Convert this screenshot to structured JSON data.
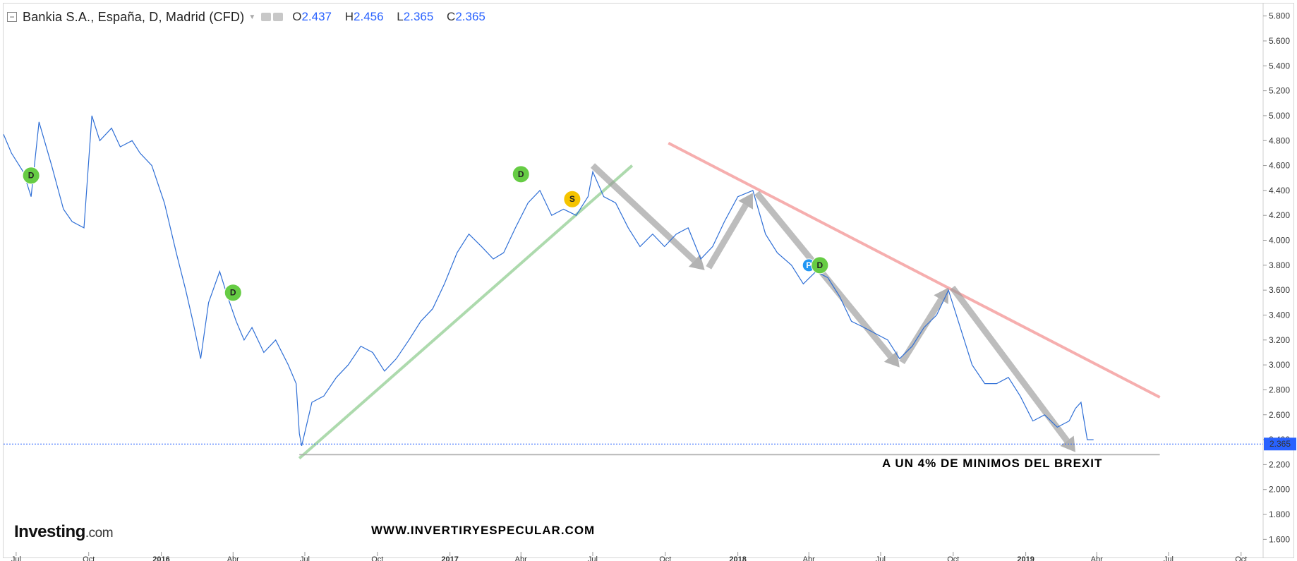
{
  "header": {
    "title": "Bankia S.A., España, D, Madrid (CFD)",
    "open_key": "O",
    "open": "2.437",
    "high_key": "H",
    "high": "2.456",
    "low_key": "L",
    "low": "2.365",
    "close_key": "C",
    "close": "2.365"
  },
  "watermark": {
    "brand": "Investing",
    "suffix": ".com"
  },
  "site_label": "WWW.INVERTIRYESPECULAR.COM",
  "annotation": "A UN 4% DE MINIMOS DEL BREXIT",
  "colors": {
    "price_line": "#2f6fd6",
    "support_green": "#9fd39f",
    "resistance_red": "#f5a0a0",
    "arrow_gray": "#9a9a9a",
    "last_price_badge": "#2962ff",
    "dividend_marker": "#66cc44",
    "split_marker": "#f5c400",
    "event_marker": "#2196f3"
  },
  "chart_data": {
    "type": "line",
    "title": "Bankia S.A., España, D, Madrid (CFD)",
    "ylim": [
      1.5,
      5.9
    ],
    "xlim": [
      "2015-06-15",
      "2019-10-20"
    ],
    "yticks": [
      "1.600",
      "1.800",
      "2.000",
      "2.200",
      "2.400",
      "2.600",
      "2.800",
      "3.000",
      "3.200",
      "3.400",
      "3.600",
      "3.800",
      "4.000",
      "4.200",
      "4.400",
      "4.600",
      "4.800",
      "5.000",
      "5.200",
      "5.400",
      "5.600",
      "5.800"
    ],
    "xticks": [
      {
        "label": "Jul",
        "date": "2015-07-01",
        "bold": false
      },
      {
        "label": "Oct",
        "date": "2015-10-01",
        "bold": false
      },
      {
        "label": "2016",
        "date": "2016-01-01",
        "bold": true
      },
      {
        "label": "Abr",
        "date": "2016-04-01",
        "bold": false
      },
      {
        "label": "Jul",
        "date": "2016-07-01",
        "bold": false
      },
      {
        "label": "Oct",
        "date": "2016-10-01",
        "bold": false
      },
      {
        "label": "2017",
        "date": "2017-01-01",
        "bold": true
      },
      {
        "label": "Abr",
        "date": "2017-04-01",
        "bold": false
      },
      {
        "label": "Jul",
        "date": "2017-07-01",
        "bold": false
      },
      {
        "label": "Oct",
        "date": "2017-10-01",
        "bold": false
      },
      {
        "label": "2018",
        "date": "2018-01-01",
        "bold": true
      },
      {
        "label": "Abr",
        "date": "2018-04-01",
        "bold": false
      },
      {
        "label": "Jul",
        "date": "2018-07-01",
        "bold": false
      },
      {
        "label": "Oct",
        "date": "2018-10-01",
        "bold": false
      },
      {
        "label": "2019",
        "date": "2019-01-01",
        "bold": true
      },
      {
        "label": "Abr",
        "date": "2019-04-01",
        "bold": false
      },
      {
        "label": "Jul",
        "date": "2019-07-01",
        "bold": false
      },
      {
        "label": "Oct",
        "date": "2019-10-01",
        "bold": false
      }
    ],
    "series": [
      {
        "x": [
          "2015-06-15",
          "2015-06-25",
          "2015-07-10",
          "2015-07-20",
          "2015-07-30",
          "2015-08-15",
          "2015-08-30",
          "2015-09-10",
          "2015-09-25",
          "2015-10-05",
          "2015-10-15",
          "2015-10-30",
          "2015-11-10",
          "2015-11-25",
          "2015-12-05",
          "2015-12-20",
          "2016-01-05",
          "2016-01-20",
          "2016-02-01",
          "2016-02-10",
          "2016-02-20",
          "2016-03-01",
          "2016-03-15",
          "2016-03-25",
          "2016-04-05",
          "2016-04-15",
          "2016-04-25",
          "2016-05-10",
          "2016-05-25",
          "2016-06-10",
          "2016-06-20",
          "2016-06-24",
          "2016-06-27",
          "2016-07-10",
          "2016-07-25",
          "2016-08-10",
          "2016-08-25",
          "2016-09-10",
          "2016-09-25",
          "2016-10-10",
          "2016-10-25",
          "2016-11-10",
          "2016-11-25",
          "2016-12-10",
          "2016-12-25",
          "2017-01-10",
          "2017-01-25",
          "2017-02-10",
          "2017-02-25",
          "2017-03-10",
          "2017-03-25",
          "2017-04-10",
          "2017-04-25",
          "2017-05-10",
          "2017-05-25",
          "2017-06-10",
          "2017-06-25",
          "2017-07-01",
          "2017-07-15",
          "2017-07-30",
          "2017-08-15",
          "2017-08-30",
          "2017-09-15",
          "2017-09-30",
          "2017-10-15",
          "2017-10-30",
          "2017-11-15",
          "2017-11-30",
          "2017-12-15",
          "2018-01-01",
          "2018-01-20",
          "2018-02-05",
          "2018-02-20",
          "2018-03-10",
          "2018-03-25",
          "2018-04-10",
          "2018-04-25",
          "2018-05-10",
          "2018-05-25",
          "2018-06-10",
          "2018-06-25",
          "2018-07-10",
          "2018-07-25",
          "2018-08-10",
          "2018-08-25",
          "2018-09-10",
          "2018-09-25",
          "2018-10-10",
          "2018-10-25",
          "2018-11-10",
          "2018-11-25",
          "2018-12-10",
          "2018-12-25",
          "2019-01-10",
          "2019-01-25",
          "2019-02-10",
          "2019-02-25",
          "2019-03-05",
          "2019-03-12",
          "2019-03-20",
          "2019-03-28"
        ],
        "values": [
          4.85,
          4.7,
          4.55,
          4.35,
          4.95,
          4.6,
          4.25,
          4.15,
          4.1,
          5.0,
          4.8,
          4.9,
          4.75,
          4.8,
          4.7,
          4.6,
          4.3,
          3.9,
          3.6,
          3.35,
          3.05,
          3.5,
          3.75,
          3.55,
          3.35,
          3.2,
          3.3,
          3.1,
          3.2,
          3.0,
          2.85,
          2.45,
          2.35,
          2.7,
          2.75,
          2.9,
          3.0,
          3.15,
          3.1,
          2.95,
          3.05,
          3.2,
          3.35,
          3.45,
          3.65,
          3.9,
          4.05,
          3.95,
          3.85,
          3.9,
          4.1,
          4.3,
          4.4,
          4.2,
          4.25,
          4.2,
          4.35,
          4.55,
          4.35,
          4.3,
          4.1,
          3.95,
          4.05,
          3.95,
          4.05,
          4.1,
          3.85,
          3.95,
          4.15,
          4.35,
          4.4,
          4.05,
          3.9,
          3.8,
          3.65,
          3.75,
          3.7,
          3.55,
          3.35,
          3.3,
          3.25,
          3.2,
          3.05,
          3.15,
          3.3,
          3.4,
          3.6,
          3.3,
          3.0,
          2.85,
          2.85,
          2.9,
          2.75,
          2.55,
          2.6,
          2.5,
          2.55,
          2.65,
          2.7,
          2.4,
          2.4
        ]
      }
    ],
    "last_price": "2.365",
    "markers": [
      {
        "label": "D",
        "date": "2015-07-20",
        "value": 4.52,
        "kind": "dividend"
      },
      {
        "label": "D",
        "date": "2016-04-01",
        "value": 3.58,
        "kind": "dividend"
      },
      {
        "label": "D",
        "date": "2017-04-01",
        "value": 4.53,
        "kind": "dividend"
      },
      {
        "label": "S",
        "date": "2017-06-05",
        "value": 4.33,
        "kind": "split"
      },
      {
        "label": "P",
        "date": "2018-04-01",
        "value": 3.8,
        "kind": "event"
      },
      {
        "label": "D",
        "date": "2018-04-15",
        "value": 3.8,
        "kind": "dividend"
      }
    ],
    "trendlines": [
      {
        "role": "support",
        "from": [
          "2016-06-24",
          2.25
        ],
        "to": [
          "2017-08-20",
          4.6
        ]
      },
      {
        "role": "resistance",
        "from": [
          "2017-10-05",
          4.78
        ],
        "to": [
          "2019-06-20",
          2.74
        ]
      },
      {
        "role": "floor",
        "from": [
          "2016-06-24",
          2.28
        ],
        "to": [
          "2019-06-20",
          2.28
        ]
      }
    ],
    "arrows": [
      {
        "from": [
          "2017-07-01",
          4.6
        ],
        "to": [
          "2017-11-20",
          3.76
        ]
      },
      {
        "from": [
          "2017-11-25",
          3.78
        ],
        "to": [
          "2018-01-20",
          4.38
        ]
      },
      {
        "from": [
          "2018-01-25",
          4.38
        ],
        "to": [
          "2018-07-25",
          2.98
        ]
      },
      {
        "from": [
          "2018-07-28",
          3.02
        ],
        "to": [
          "2018-09-25",
          3.62
        ]
      },
      {
        "from": [
          "2018-09-30",
          3.62
        ],
        "to": [
          "2019-03-05",
          2.3
        ]
      }
    ]
  }
}
